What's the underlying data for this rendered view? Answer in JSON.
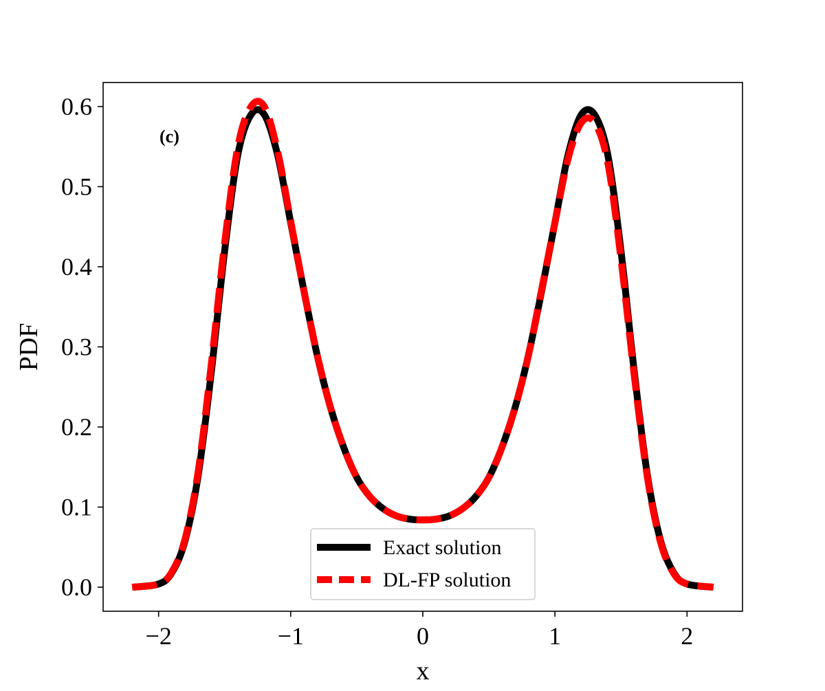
{
  "chart_data": {
    "type": "line",
    "title": "",
    "panel_label": "(c)",
    "xlabel": "x",
    "ylabel": "PDF",
    "xlim": [
      -2.42,
      2.42
    ],
    "ylim": [
      -0.03,
      0.63
    ],
    "x_ticks": [
      -2,
      -1,
      0,
      1,
      2
    ],
    "x_tick_labels": [
      "−2",
      "−1",
      "0",
      "1",
      "2"
    ],
    "y_ticks": [
      0.0,
      0.1,
      0.2,
      0.3,
      0.4,
      0.5,
      0.6
    ],
    "y_tick_labels": [
      "0.0",
      "0.1",
      "0.2",
      "0.3",
      "0.4",
      "0.5",
      "0.6"
    ],
    "grid": false,
    "legend_position": "lower-center",
    "series": [
      {
        "name": "Exact solution",
        "color": "#000000",
        "style": "solid",
        "x": [
          -2.2,
          -2.0,
          -1.9,
          -1.8,
          -1.7,
          -1.6,
          -1.5,
          -1.4,
          -1.3,
          -1.2,
          -1.1,
          -1.0,
          -0.9,
          -0.8,
          -0.7,
          -0.6,
          -0.5,
          -0.4,
          -0.3,
          -0.2,
          -0.1,
          0.0,
          0.1,
          0.2,
          0.3,
          0.4,
          0.5,
          0.6,
          0.7,
          0.8,
          0.9,
          1.0,
          1.1,
          1.2,
          1.3,
          1.4,
          1.5,
          1.6,
          1.7,
          1.8,
          1.9,
          2.0,
          2.2
        ],
        "y": [
          0.0,
          0.004,
          0.018,
          0.058,
          0.14,
          0.27,
          0.42,
          0.54,
          0.59,
          0.59,
          0.54,
          0.455,
          0.37,
          0.29,
          0.225,
          0.175,
          0.137,
          0.113,
          0.098,
          0.089,
          0.085,
          0.084,
          0.085,
          0.089,
          0.098,
          0.113,
          0.137,
          0.175,
          0.225,
          0.29,
          0.37,
          0.455,
          0.54,
          0.59,
          0.59,
          0.54,
          0.42,
          0.27,
          0.14,
          0.058,
          0.018,
          0.004,
          0.0
        ]
      },
      {
        "name": "DL-FP solution",
        "color": "#ff0000",
        "style": "dashed",
        "x": [
          -2.2,
          -2.0,
          -1.9,
          -1.8,
          -1.7,
          -1.6,
          -1.5,
          -1.4,
          -1.3,
          -1.2,
          -1.1,
          -1.0,
          -0.9,
          -0.8,
          -0.7,
          -0.6,
          -0.5,
          -0.4,
          -0.3,
          -0.2,
          -0.1,
          0.0,
          0.1,
          0.2,
          0.3,
          0.4,
          0.5,
          0.6,
          0.7,
          0.8,
          0.9,
          1.0,
          1.1,
          1.2,
          1.3,
          1.4,
          1.5,
          1.6,
          1.7,
          1.8,
          1.9,
          2.0,
          2.2
        ],
        "y": [
          0.0,
          0.004,
          0.019,
          0.06,
          0.145,
          0.28,
          0.43,
          0.55,
          0.6,
          0.6,
          0.545,
          0.457,
          0.37,
          0.29,
          0.225,
          0.175,
          0.137,
          0.113,
          0.098,
          0.089,
          0.085,
          0.084,
          0.085,
          0.089,
          0.098,
          0.113,
          0.137,
          0.175,
          0.225,
          0.29,
          0.372,
          0.455,
          0.535,
          0.58,
          0.58,
          0.53,
          0.41,
          0.265,
          0.137,
          0.056,
          0.017,
          0.004,
          0.0
        ]
      }
    ]
  }
}
